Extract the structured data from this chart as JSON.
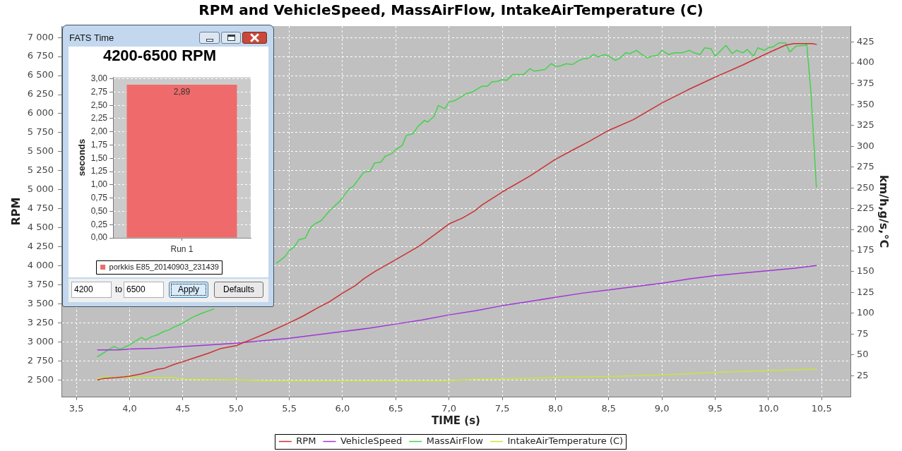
{
  "chart_data": [
    {
      "type": "line",
      "title": "RPM and VehicleSpeed, MassAirFlow, IntakeAirTemperature (C)",
      "xlabel": "TIME (s)",
      "ylabel": "RPM",
      "y2label": "km/h,g/s,°C",
      "xlim": [
        3.36,
        10.77
      ],
      "xticks": [
        {
          "value": 3.5,
          "label": "3,5"
        },
        {
          "value": 4,
          "label": "4,0"
        },
        {
          "value": 4.5,
          "label": "4,5"
        },
        {
          "value": 5,
          "label": "5,0"
        },
        {
          "value": 5.5,
          "label": "5,5"
        },
        {
          "value": 6,
          "label": "6,0"
        },
        {
          "value": 6.5,
          "label": "6,5"
        },
        {
          "value": 7,
          "label": "7,0"
        },
        {
          "value": 7.5,
          "label": "7,5"
        },
        {
          "value": 8,
          "label": "8,0"
        },
        {
          "value": 8.5,
          "label": "8,5"
        },
        {
          "value": 9,
          "label": "9,0"
        },
        {
          "value": 9.5,
          "label": "9,5"
        },
        {
          "value": 10,
          "label": "10,0"
        },
        {
          "value": 10.5,
          "label": "10,5"
        }
      ],
      "ylim": [
        2280,
        7150
      ],
      "yticks": [
        {
          "value": 2500,
          "label": "2 500"
        },
        {
          "value": 2750,
          "label": "2 750"
        },
        {
          "value": 3000,
          "label": "3 000"
        },
        {
          "value": 3250,
          "label": "3 250"
        },
        {
          "value": 3500,
          "label": "3 500"
        },
        {
          "value": 3750,
          "label": "3 750"
        },
        {
          "value": 4000,
          "label": "4 000"
        },
        {
          "value": 4250,
          "label": "4 250"
        },
        {
          "value": 4500,
          "label": "4 500"
        },
        {
          "value": 4750,
          "label": "4 750"
        },
        {
          "value": 5000,
          "label": "5 000"
        },
        {
          "value": 5250,
          "label": "5 250"
        },
        {
          "value": 5500,
          "label": "5 500"
        },
        {
          "value": 5750,
          "label": "5 750"
        },
        {
          "value": 6000,
          "label": "6 000"
        },
        {
          "value": 6250,
          "label": "6 250"
        },
        {
          "value": 6500,
          "label": "6 500"
        },
        {
          "value": 6750,
          "label": "6 750"
        },
        {
          "value": 7000,
          "label": "7 000"
        }
      ],
      "y2lim": [
        0,
        444
      ],
      "y2ticks": [
        25,
        50,
        75,
        100,
        125,
        150,
        175,
        200,
        225,
        250,
        275,
        300,
        325,
        350,
        375,
        400,
        425
      ],
      "grid": true,
      "legend": "bottom",
      "marker": "none",
      "series": [
        {
          "name": "RPM",
          "color": "#cc3030",
          "x": [
            3.7,
            3.76,
            3.87,
            3.95,
            4.0,
            4.11,
            4.19,
            4.26,
            4.32,
            4.41,
            4.5,
            4.63,
            4.74,
            4.85,
            5.0,
            5.14,
            5.28,
            5.5,
            5.63,
            5.77,
            5.88,
            6.0,
            6.12,
            6.2,
            6.31,
            6.5,
            6.72,
            7.0,
            7.13,
            7.24,
            7.31,
            7.5,
            7.76,
            8.0,
            8.2,
            8.31,
            8.5,
            8.73,
            9.0,
            9.24,
            9.5,
            9.76,
            10.0,
            10.16,
            10.24,
            10.34,
            10.41,
            10.45
          ],
          "values": [
            2500,
            2520,
            2530,
            2540,
            2550,
            2580,
            2610,
            2640,
            2650,
            2700,
            2740,
            2800,
            2850,
            2910,
            2950,
            3030,
            3110,
            3250,
            3340,
            3450,
            3530,
            3640,
            3740,
            3830,
            3930,
            4080,
            4260,
            4550,
            4630,
            4720,
            4800,
            4970,
            5180,
            5400,
            5550,
            5630,
            5780,
            5920,
            6140,
            6310,
            6480,
            6640,
            6800,
            6900,
            6920,
            6920,
            6920,
            6910
          ]
        },
        {
          "name": "VehicleSpeed",
          "color": "#a035d8",
          "axis": "y2",
          "x": [
            3.7,
            3.9,
            4.0,
            4.25,
            4.5,
            4.75,
            5.0,
            5.25,
            5.5,
            5.75,
            6.0,
            6.25,
            6.5,
            6.75,
            7.0,
            7.25,
            7.5,
            7.75,
            8.0,
            8.25,
            8.5,
            8.75,
            9.0,
            9.2,
            9.25,
            9.5,
            9.75,
            10.0,
            10.25,
            10.45
          ],
          "values": [
            56,
            56,
            57,
            58,
            60,
            62,
            64,
            67,
            70,
            74,
            78,
            82,
            87,
            92,
            98,
            103,
            109,
            114,
            119,
            124,
            128,
            132,
            136,
            140,
            141,
            145,
            148,
            151,
            154,
            157
          ]
        },
        {
          "name": "MassAirFlow",
          "color": "#44d24c",
          "axis": "y2",
          "x": [
            3.7,
            3.85,
            3.91,
            4.0,
            4.11,
            4.15,
            4.21,
            4.26,
            4.32,
            4.37,
            4.41,
            4.5,
            4.59,
            4.68,
            4.79,
            5.1,
            5.38,
            5.46,
            5.5,
            5.55,
            5.59,
            5.65,
            5.7,
            5.74,
            5.8,
            5.88,
            5.98,
            6.06,
            6.1,
            6.2,
            6.26,
            6.3,
            6.36,
            6.4,
            6.46,
            6.5,
            6.56,
            6.6,
            6.66,
            6.71,
            6.77,
            6.8,
            6.86,
            6.9,
            6.96,
            7.0,
            7.06,
            7.16,
            7.22,
            7.27,
            7.31,
            7.36,
            7.4,
            7.46,
            7.5,
            7.54,
            7.6,
            7.7,
            7.76,
            7.8,
            7.9,
            7.96,
            8.0,
            8.04,
            8.1,
            8.16,
            8.21,
            8.26,
            8.3,
            8.36,
            8.4,
            8.46,
            8.5,
            8.56,
            8.6,
            8.66,
            8.7,
            8.76,
            8.81,
            8.86,
            8.91,
            8.96,
            9.0,
            9.06,
            9.12,
            9.19,
            9.26,
            9.3,
            9.36,
            9.4,
            9.46,
            9.5,
            9.6,
            9.66,
            9.7,
            9.76,
            9.8,
            9.86,
            9.9,
            9.96,
            10.0,
            10.04,
            10.1,
            10.16,
            10.2,
            10.26,
            10.34,
            10.36,
            10.4,
            10.45
          ],
          "values": [
            48,
            60,
            57,
            62,
            71,
            68,
            72,
            74,
            78,
            80,
            83,
            88,
            95,
            100,
            105,
            null,
            160,
            168,
            175,
            180,
            188,
            190,
            203,
            207,
            211,
            223,
            235,
            249,
            252,
            269,
            270,
            280,
            281,
            288,
            291,
            296,
            301,
            313,
            315,
            324,
            331,
            329,
            336,
            349,
            345,
            353,
            355,
            363,
            365,
            369,
            372,
            372,
            377,
            378,
            380,
            379,
            386,
            386,
            393,
            390,
            392,
            399,
            396,
            396,
            399,
            398,
            402,
            405,
            405,
            410,
            407,
            410,
            408,
            403,
            405,
            412,
            411,
            415,
            410,
            406,
            408,
            409,
            415,
            410,
            412,
            412,
            415,
            412,
            410,
            418,
            417,
            408,
            421,
            411,
            415,
            412,
            416,
            408,
            418,
            415,
            418,
            419,
            424,
            424,
            413,
            420,
            421,
            422,
            363,
            251
          ]
        },
        {
          "name": "IntakeAirTemperature (C)",
          "color": "#c8e63c",
          "axis": "y2",
          "x": [
            3.7,
            3.76,
            4.4,
            4.5,
            5.0,
            5.3,
            7.0,
            7.25,
            7.75,
            8.0,
            8.5,
            9.0,
            9.5,
            10.0,
            10.45
          ],
          "values": [
            22,
            23,
            23,
            21,
            20,
            19,
            19,
            21,
            22,
            23,
            24,
            26,
            29,
            31,
            33
          ]
        }
      ]
    },
    {
      "type": "bar",
      "title": "4200-6500 RPM",
      "ylabel": "seconds",
      "categories": [
        "Run 1"
      ],
      "series": [
        {
          "name": "porkkis E85_20140903_231439",
          "color": "#ef6b6b",
          "values": [
            2.89
          ],
          "value_labels": [
            "2,89"
          ]
        }
      ],
      "ylim": [
        0,
        3.03
      ],
      "yticks": [
        {
          "value": 0,
          "label": "0,00"
        },
        {
          "value": 0.25,
          "label": "0,25"
        },
        {
          "value": 0.5,
          "label": "0,50"
        },
        {
          "value": 0.75,
          "label": "0,75"
        },
        {
          "value": 1,
          "label": "1,00"
        },
        {
          "value": 1.25,
          "label": "1,25"
        },
        {
          "value": 1.5,
          "label": "1,50"
        },
        {
          "value": 1.75,
          "label": "1,75"
        },
        {
          "value": 2,
          "label": "2,00"
        },
        {
          "value": 2.25,
          "label": "2,25"
        },
        {
          "value": 2.5,
          "label": "2,50"
        },
        {
          "value": 2.75,
          "label": "2,75"
        },
        {
          "value": 3,
          "label": "3,00"
        }
      ],
      "grid": "y",
      "legend": "bottom",
      "annotations": [
        "FATS Time",
        "4200",
        "to",
        "6500",
        "Apply",
        "Defaults"
      ]
    }
  ]
}
